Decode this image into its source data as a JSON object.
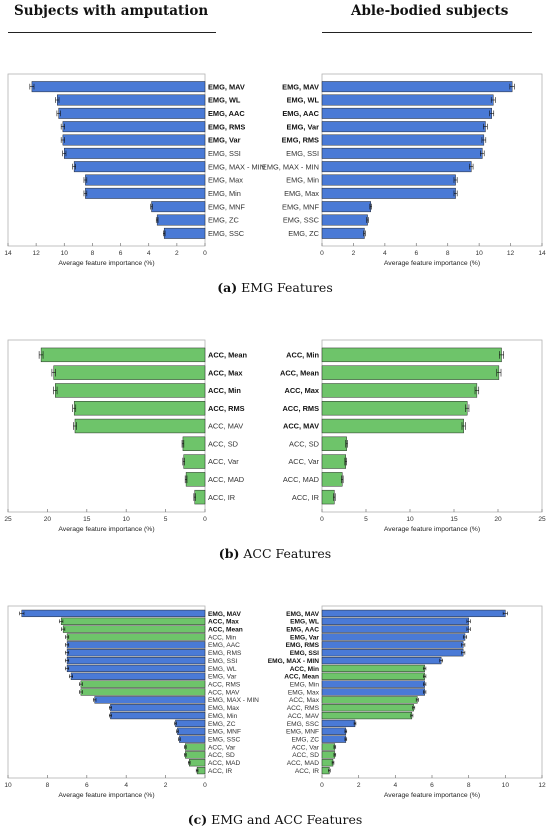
{
  "headers": {
    "left": "Subjects with amputation",
    "right": "Able-bodied subjects"
  },
  "captions": [
    {
      "label": "(a)",
      "text": " EMG Features"
    },
    {
      "label": "(b)",
      "text": " ACC Features"
    },
    {
      "label": "(c)",
      "text": " EMG and ACC Features"
    }
  ],
  "colors": {
    "emg": "#4a7ad6",
    "acc": "#6ec46a",
    "bar_edge": "#1a1a1a",
    "frame": "#b3b3b3"
  },
  "chart_data": [
    {
      "type": "bar",
      "orientation": "horizontal",
      "panel": "a-left",
      "xreversed": true,
      "xlabel": "Average feature importance (%)",
      "xlim": [
        0,
        14
      ],
      "xticks": [
        "14",
        "12",
        "10",
        "8",
        "6",
        "4",
        "2",
        "0"
      ],
      "categories": [
        "EMG, MAV",
        "EMG, WL",
        "EMG, AAC",
        "EMG, RMS",
        "EMG, Var",
        "EMG, SSI",
        "EMG, MAX - MIN",
        "EMG, Max",
        "EMG, Min",
        "EMG, MNF",
        "EMG, ZC",
        "EMG, SSC"
      ],
      "values": [
        12.3,
        10.5,
        10.4,
        10.1,
        10.1,
        10.0,
        9.3,
        8.5,
        8.5,
        3.8,
        3.4,
        2.9
      ],
      "groups": [
        "EMG",
        "EMG",
        "EMG",
        "EMG",
        "EMG",
        "EMG",
        "EMG",
        "EMG",
        "EMG",
        "EMG",
        "EMG",
        "EMG"
      ],
      "bold": [
        true,
        true,
        true,
        true,
        true,
        false,
        false,
        false,
        false,
        false,
        false,
        false
      ]
    },
    {
      "type": "bar",
      "orientation": "horizontal",
      "panel": "a-right",
      "xreversed": false,
      "xlabel": "Average feature importance (%)",
      "xlim": [
        0,
        14
      ],
      "xticks": [
        "0",
        "2",
        "4",
        "6",
        "8",
        "10",
        "12",
        "14"
      ],
      "categories": [
        "EMG, MAV",
        "EMG, WL",
        "EMG, AAC",
        "EMG, Var",
        "EMG, RMS",
        "EMG, SSI",
        "EMG, MAX - MIN",
        "EMG, Min",
        "EMG, Max",
        "EMG, MNF",
        "EMG, SSC",
        "EMG, ZC"
      ],
      "values": [
        12.1,
        10.9,
        10.8,
        10.4,
        10.3,
        10.2,
        9.5,
        8.5,
        8.5,
        3.1,
        2.9,
        2.7
      ],
      "groups": [
        "EMG",
        "EMG",
        "EMG",
        "EMG",
        "EMG",
        "EMG",
        "EMG",
        "EMG",
        "EMG",
        "EMG",
        "EMG",
        "EMG"
      ],
      "bold": [
        true,
        true,
        true,
        true,
        true,
        false,
        false,
        false,
        false,
        false,
        false,
        false
      ]
    },
    {
      "type": "bar",
      "orientation": "horizontal",
      "panel": "b-left",
      "xreversed": true,
      "xlabel": "Average feature importance (%)",
      "xlim": [
        0,
        25
      ],
      "xticks": [
        "25",
        "20",
        "15",
        "10",
        "5",
        "0"
      ],
      "categories": [
        "ACC, Mean",
        "ACC, Max",
        "ACC, Min",
        "ACC, RMS",
        "ACC, MAV",
        "ACC, SD",
        "ACC, Var",
        "ACC, MAD",
        "ACC, IR"
      ],
      "values": [
        20.8,
        19.2,
        19.0,
        16.6,
        16.5,
        2.8,
        2.7,
        2.4,
        1.3
      ],
      "groups": [
        "ACC",
        "ACC",
        "ACC",
        "ACC",
        "ACC",
        "ACC",
        "ACC",
        "ACC",
        "ACC"
      ],
      "bold": [
        true,
        true,
        true,
        true,
        false,
        false,
        false,
        false,
        false
      ]
    },
    {
      "type": "bar",
      "orientation": "horizontal",
      "panel": "b-right",
      "xreversed": false,
      "xlabel": "Average feature importance (%)",
      "xlim": [
        0,
        25
      ],
      "xticks": [
        "0",
        "5",
        "10",
        "15",
        "20",
        "25"
      ],
      "categories": [
        "ACC, Min",
        "ACC, Mean",
        "ACC, Max",
        "ACC, RMS",
        "ACC, MAV",
        "ACC, SD",
        "ACC, Var",
        "ACC, MAD",
        "ACC, IR"
      ],
      "values": [
        20.4,
        20.1,
        17.6,
        16.5,
        16.1,
        2.8,
        2.7,
        2.3,
        1.4
      ],
      "groups": [
        "ACC",
        "ACC",
        "ACC",
        "ACC",
        "ACC",
        "ACC",
        "ACC",
        "ACC",
        "ACC"
      ],
      "bold": [
        true,
        true,
        true,
        true,
        true,
        false,
        false,
        false,
        false
      ]
    },
    {
      "type": "bar",
      "orientation": "horizontal",
      "panel": "c-left",
      "xreversed": true,
      "xlabel": "Average feature importance (%)",
      "xlim": [
        0,
        10
      ],
      "xticks": [
        "10",
        "8",
        "6",
        "4",
        "2",
        "0"
      ],
      "categories": [
        "EMG, MAV",
        "ACC, Max",
        "ACC, Mean",
        "ACC, Min",
        "EMG, AAC",
        "EMG, RMS",
        "EMG, SSI",
        "EMG, WL",
        "EMG, Var",
        "ACC, RMS",
        "ACC, MAV",
        "EMG, MAX - MIN",
        "EMG, Max",
        "EMG, Min",
        "EMG, ZC",
        "EMG, MNF",
        "EMG, SSC",
        "ACC, Var",
        "ACC, SD",
        "ACC, MAD",
        "ACC, IR"
      ],
      "values": [
        9.3,
        7.3,
        7.2,
        7.0,
        7.0,
        7.0,
        7.0,
        7.0,
        6.8,
        6.3,
        6.3,
        5.6,
        4.8,
        4.8,
        1.5,
        1.4,
        1.3,
        1.0,
        1.0,
        0.8,
        0.4
      ],
      "groups": [
        "EMG",
        "ACC",
        "ACC",
        "ACC",
        "EMG",
        "EMG",
        "EMG",
        "EMG",
        "EMG",
        "ACC",
        "ACC",
        "EMG",
        "EMG",
        "EMG",
        "EMG",
        "EMG",
        "EMG",
        "ACC",
        "ACC",
        "ACC",
        "ACC"
      ],
      "bold": [
        true,
        true,
        true,
        false,
        false,
        false,
        false,
        false,
        false,
        false,
        false,
        false,
        false,
        false,
        false,
        false,
        false,
        false,
        false,
        false,
        false
      ]
    },
    {
      "type": "bar",
      "orientation": "horizontal",
      "panel": "c-right",
      "xreversed": false,
      "xlabel": "Average feature importance (%)",
      "xlim": [
        0,
        12
      ],
      "xticks": [
        "0",
        "2",
        "4",
        "6",
        "8",
        "10",
        "12"
      ],
      "categories": [
        "EMG, MAV",
        "EMG, WL",
        "EMG, AAC",
        "EMG, Var",
        "EMG, RMS",
        "EMG, SSI",
        "EMG, MAX - MIN",
        "ACC, Min",
        "ACC, Mean",
        "EMG, Min",
        "EMG, Max",
        "ACC, Max",
        "ACC, RMS",
        "ACC, MAV",
        "EMG, SSC",
        "EMG, MNF",
        "EMG, ZC",
        "ACC, Var",
        "ACC, SD",
        "ACC, MAD",
        "ACC, IR"
      ],
      "values": [
        10.0,
        8.0,
        8.0,
        7.8,
        7.7,
        7.7,
        6.5,
        5.6,
        5.6,
        5.6,
        5.6,
        5.2,
        5.0,
        4.9,
        1.8,
        1.3,
        1.3,
        0.7,
        0.7,
        0.6,
        0.4
      ],
      "groups": [
        "EMG",
        "EMG",
        "EMG",
        "EMG",
        "EMG",
        "EMG",
        "EMG",
        "ACC",
        "ACC",
        "EMG",
        "EMG",
        "ACC",
        "ACC",
        "ACC",
        "EMG",
        "EMG",
        "EMG",
        "ACC",
        "ACC",
        "ACC",
        "ACC"
      ],
      "bold": [
        true,
        true,
        true,
        true,
        true,
        true,
        true,
        true,
        true,
        false,
        false,
        false,
        false,
        false,
        false,
        false,
        false,
        false,
        false,
        false,
        false
      ]
    }
  ]
}
